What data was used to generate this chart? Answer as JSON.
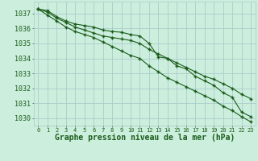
{
  "title": "Graphe pression niveau de la mer (hPa)",
  "background_color": "#cceedd",
  "grid_color": "#aacccc",
  "line_color": "#1a5c1a",
  "x": [
    0,
    1,
    2,
    3,
    4,
    5,
    6,
    7,
    8,
    9,
    10,
    11,
    12,
    13,
    14,
    15,
    16,
    17,
    18,
    19,
    20,
    21,
    22,
    23
  ],
  "line1": [
    1037.3,
    1037.2,
    1036.8,
    1036.5,
    1036.3,
    1036.2,
    1036.1,
    1035.9,
    1035.8,
    1035.75,
    1035.6,
    1035.5,
    1035.0,
    1034.1,
    1034.0,
    1033.5,
    1033.3,
    1032.8,
    1032.5,
    1032.2,
    1031.7,
    1031.4,
    1030.4,
    1030.1
  ],
  "line2": [
    1037.3,
    1036.9,
    1036.5,
    1036.1,
    1035.8,
    1035.6,
    1035.4,
    1035.1,
    1034.8,
    1034.5,
    1034.2,
    1034.0,
    1033.5,
    1033.1,
    1032.7,
    1032.4,
    1032.1,
    1031.8,
    1031.5,
    1031.2,
    1030.8,
    1030.5,
    1030.1,
    1029.75
  ],
  "line3": [
    1037.3,
    1037.1,
    1036.7,
    1036.4,
    1036.1,
    1035.9,
    1035.7,
    1035.5,
    1035.4,
    1035.3,
    1035.2,
    1035.0,
    1034.6,
    1034.3,
    1034.0,
    1033.7,
    1033.4,
    1033.1,
    1032.8,
    1032.6,
    1032.3,
    1032.0,
    1031.6,
    1031.3
  ],
  "ylim": [
    1029.5,
    1037.8
  ],
  "yticks": [
    1030,
    1031,
    1032,
    1033,
    1034,
    1035,
    1036,
    1037
  ],
  "tick_fontsize": 6,
  "xlabel_fontsize": 7,
  "xtick_fontsize": 5
}
